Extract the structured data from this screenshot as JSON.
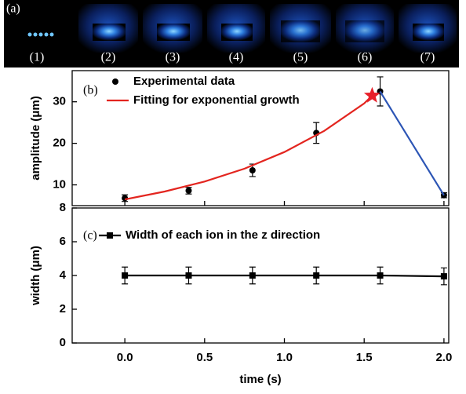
{
  "image_panel": {
    "label": "(a)",
    "frames": [
      "(1)",
      "(2)",
      "(3)",
      "(4)",
      "(5)",
      "(6)",
      "(7)"
    ]
  },
  "chart_data": [
    {
      "type": "line",
      "panel_label": "(b)",
      "ylabel": "amplitude (μm)",
      "xlim": [
        -0.33,
        2.03
      ],
      "xticks": [
        0,
        0.5,
        1,
        1.5,
        2
      ],
      "ylim": [
        5,
        37.5
      ],
      "yticks": [
        10,
        20,
        30
      ],
      "series": [
        {
          "name": "Experimental data",
          "color": "#000000",
          "marker": "circle",
          "line": false,
          "x": [
            0,
            0.4,
            0.8,
            1.2,
            1.6,
            2.0
          ],
          "values": [
            6.8,
            8.6,
            13.5,
            22.5,
            32.5,
            7.5
          ],
          "errors": [
            0.8,
            0.8,
            1.5,
            2.5,
            3.5,
            0.6
          ]
        },
        {
          "name": "Fitting for exponential growth",
          "color": "#e3251f",
          "line": true,
          "x": [
            0,
            0.25,
            0.5,
            0.75,
            1.0,
            1.25,
            1.5,
            1.55
          ],
          "values": [
            6.5,
            8.4,
            10.8,
            13.9,
            17.9,
            23.0,
            29.6,
            31.5
          ]
        },
        {
          "color": "#2c55b5",
          "line": true,
          "x": [
            1.6,
            2.0
          ],
          "values": [
            32.5,
            7.5
          ]
        },
        {
          "color": "#e8202a",
          "marker": "star",
          "line": false,
          "x": [
            1.55
          ],
          "values": [
            31.5
          ]
        }
      ]
    },
    {
      "type": "line",
      "panel_label": "(c)",
      "ylabel": "width (μm)",
      "xlabel": "time (s)",
      "xlim": [
        -0.33,
        2.03
      ],
      "xticks": [
        {
          "value": 0,
          "label": "0.0"
        },
        {
          "value": 0.5,
          "label": "0.5"
        },
        {
          "value": 1,
          "label": "1.0"
        },
        {
          "value": 1.5,
          "label": "1.5"
        },
        {
          "value": 2,
          "label": "2.0"
        }
      ],
      "ylim": [
        0,
        8
      ],
      "yticks": [
        0,
        2,
        4,
        6,
        8
      ],
      "series": [
        {
          "name": "Width of each ion in the z direction",
          "color": "#000000",
          "marker": "square",
          "line": true,
          "x": [
            0,
            0.4,
            0.8,
            1.2,
            1.6,
            2.0
          ],
          "values": [
            4.0,
            4.0,
            4.0,
            4.0,
            4.0,
            3.95
          ],
          "errors": [
            0.5,
            0.5,
            0.5,
            0.5,
            0.5,
            0.5
          ]
        }
      ]
    }
  ]
}
